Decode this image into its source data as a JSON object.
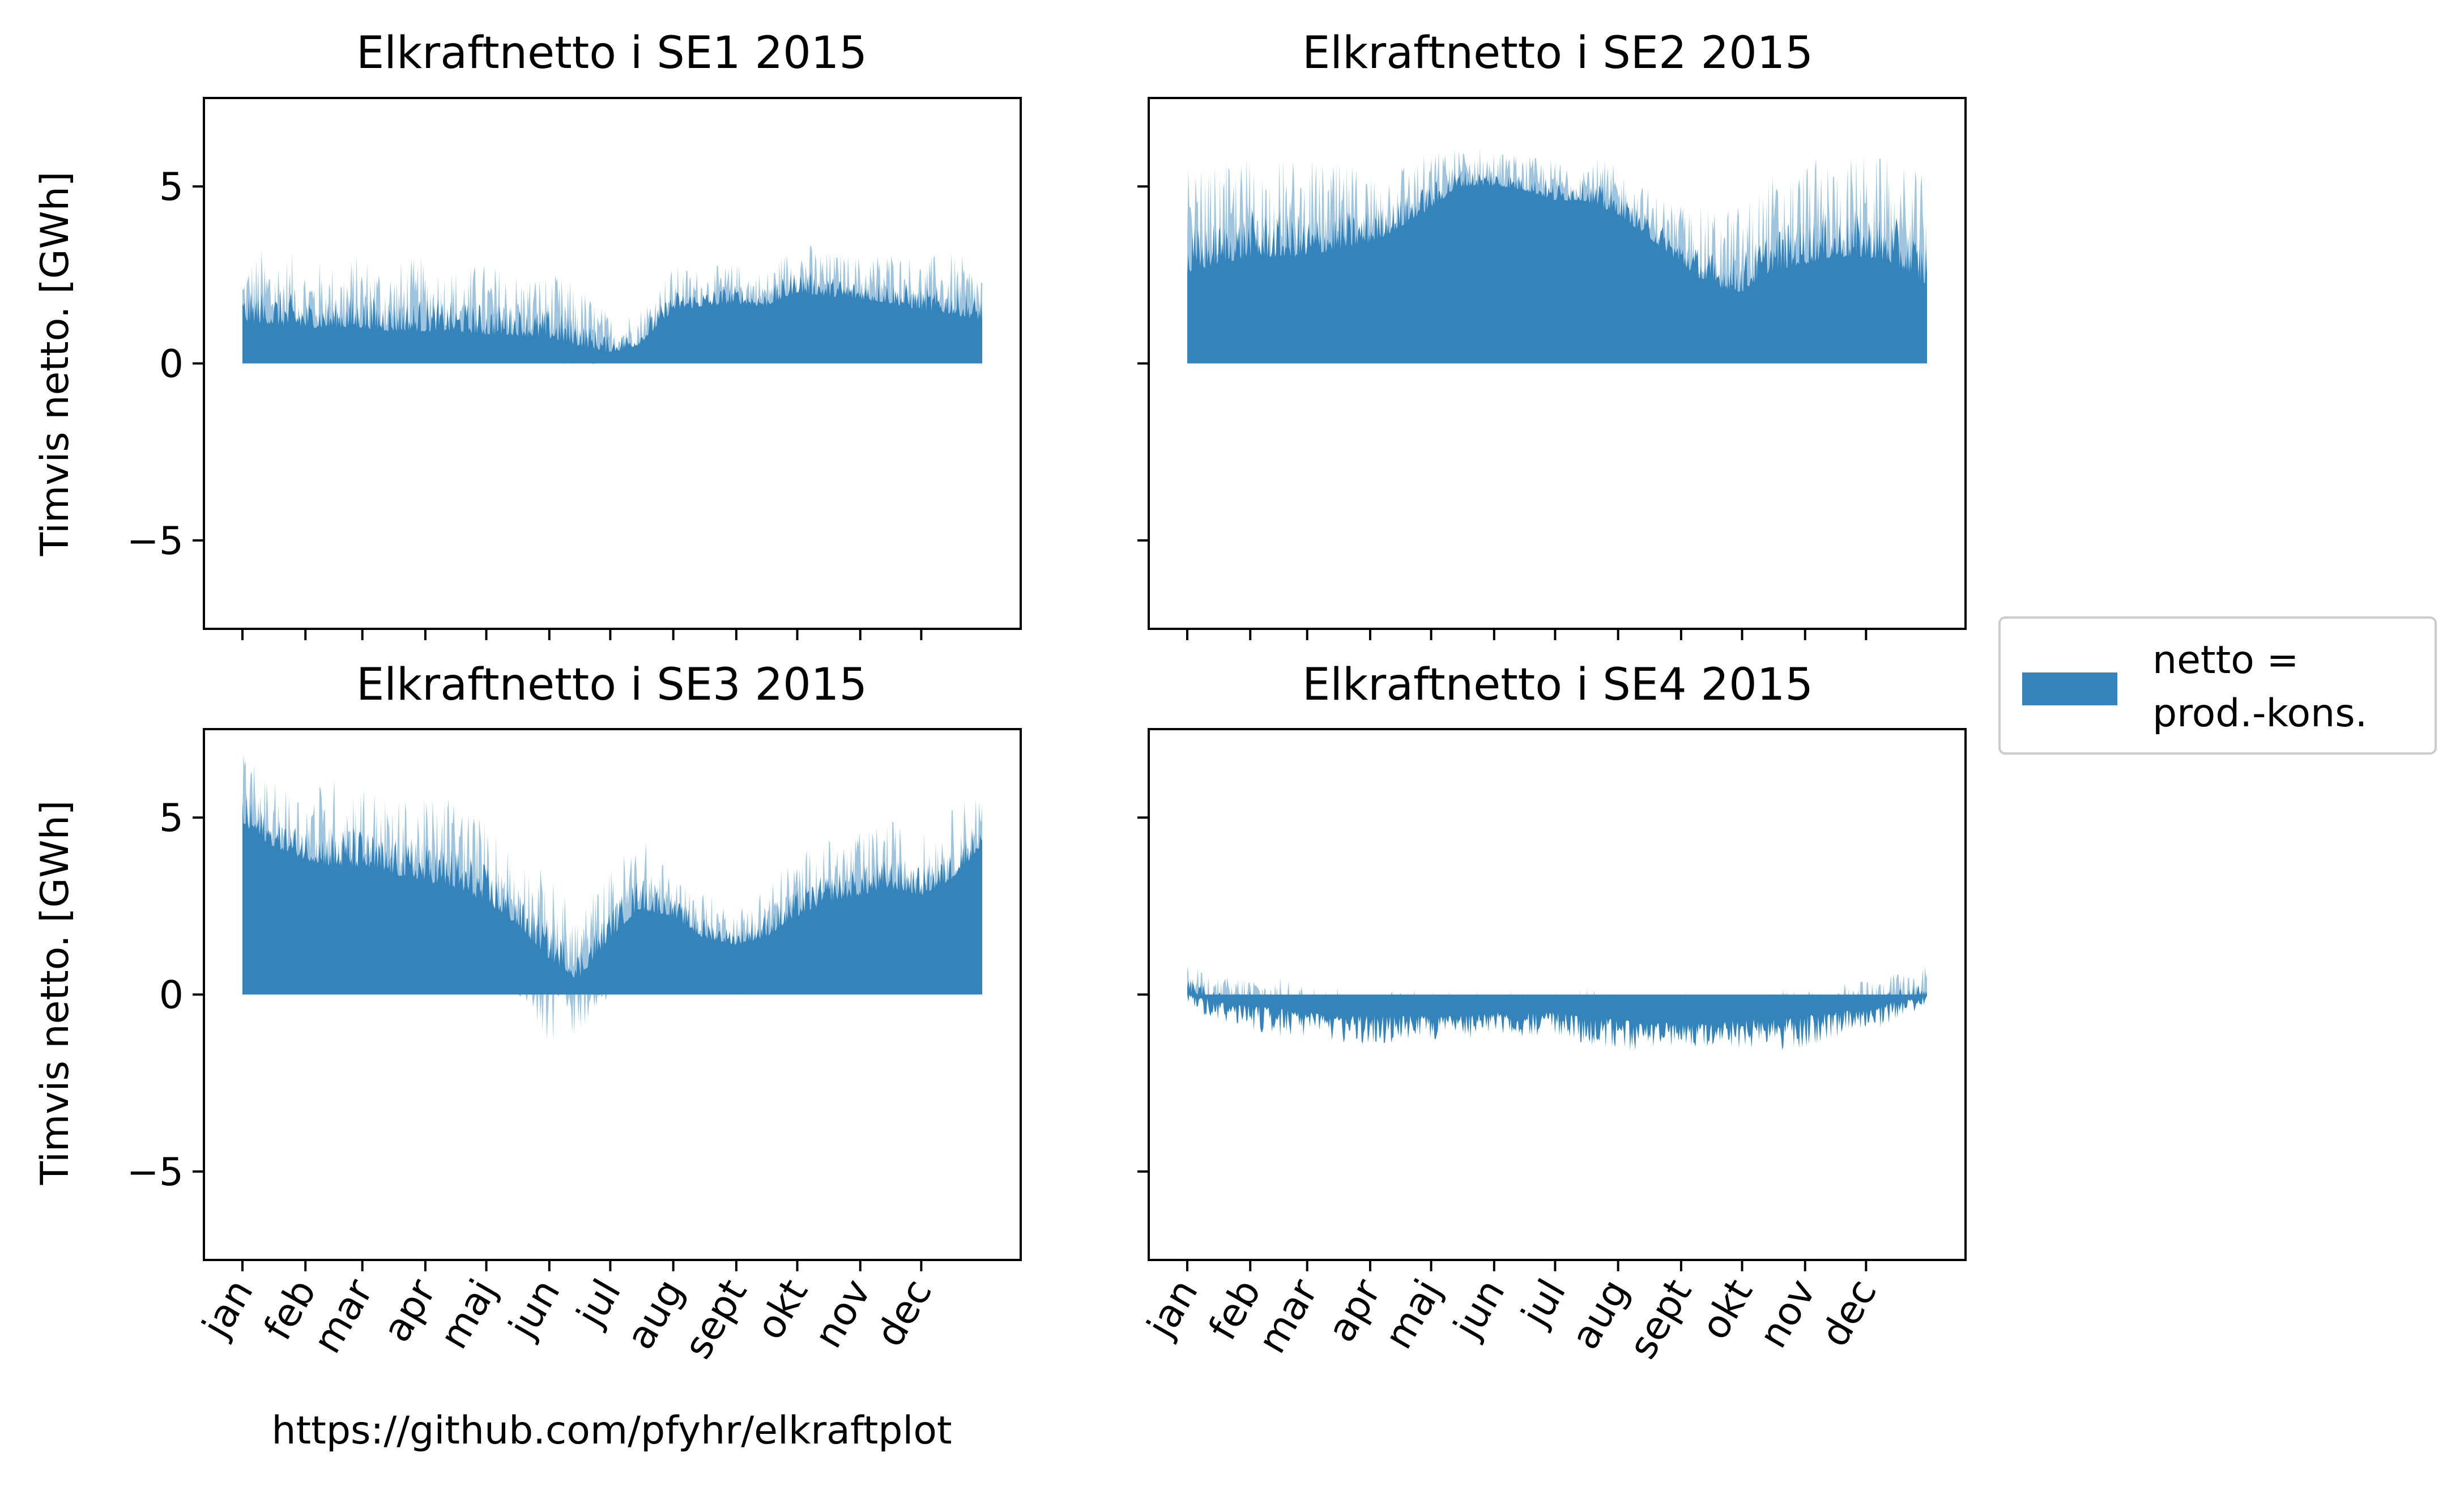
{
  "figure": {
    "credit": "https://github.com/pfyhr/elkraftplot",
    "legend_label_line1": "netto =",
    "legend_label_line2": "prod.-kons.",
    "fill_color": "#3484bb",
    "fill_light_color": "#9ec4de"
  },
  "chart_data": [
    {
      "type": "area",
      "title": "Elkraftnetto i SE1 2015",
      "ylabel": "Timvis netto. [GWh]",
      "xlabel": "",
      "ylim": [
        -7.5,
        7.5
      ],
      "yticks": [
        -5,
        0,
        5
      ],
      "ytick_labels": [
        "−5",
        "0",
        "5"
      ],
      "xticks": [
        "jan",
        "feb",
        "mar",
        "apr",
        "maj",
        "jun",
        "jul",
        "aug",
        "sept",
        "okt",
        "nov",
        "dec"
      ],
      "show_xtick_labels": false,
      "series": [
        {
          "name": "netto = prod.-kons.",
          "x": [
            "2015-01-01",
            "2015-01-15",
            "2015-02-01",
            "2015-02-15",
            "2015-03-01",
            "2015-03-15",
            "2015-04-01",
            "2015-04-15",
            "2015-05-01",
            "2015-05-15",
            "2015-06-01",
            "2015-06-15",
            "2015-07-01",
            "2015-07-15",
            "2015-08-01",
            "2015-08-15",
            "2015-09-01",
            "2015-09-15",
            "2015-10-01",
            "2015-10-15",
            "2015-11-01",
            "2015-11-15",
            "2015-12-01",
            "2015-12-15",
            "2015-12-31"
          ],
          "max": [
            3.0,
            3.4,
            3.0,
            2.9,
            3.2,
            2.9,
            3.1,
            2.8,
            2.9,
            2.7,
            2.6,
            2.3,
            1.4,
            1.6,
            2.8,
            2.7,
            2.9,
            2.6,
            3.6,
            3.2,
            3.1,
            3.3,
            3.0,
            3.2,
            2.8
          ],
          "typical": [
            1.2,
            1.1,
            1.0,
            1.0,
            1.0,
            0.9,
            0.9,
            0.9,
            0.8,
            0.8,
            0.7,
            0.5,
            0.3,
            0.5,
            1.5,
            1.6,
            1.7,
            1.6,
            2.0,
            1.9,
            1.8,
            1.7,
            1.5,
            1.4,
            1.2
          ],
          "min": [
            0.0,
            0.0,
            0.0,
            0.0,
            0.0,
            0.0,
            0.0,
            0.0,
            0.0,
            0.0,
            0.0,
            -0.1,
            0.0,
            0.1,
            0.4,
            0.5,
            0.5,
            0.5,
            0.7,
            0.6,
            0.6,
            0.5,
            0.4,
            0.3,
            0.2
          ]
        }
      ]
    },
    {
      "type": "area",
      "title": "Elkraftnetto i SE2 2015",
      "ylabel": "",
      "xlabel": "",
      "ylim": [
        -7.5,
        7.5
      ],
      "yticks": [
        -5,
        0,
        5
      ],
      "ytick_labels": [
        "",
        "",
        ""
      ],
      "xticks": [
        "jan",
        "feb",
        "mar",
        "apr",
        "maj",
        "jun",
        "jul",
        "aug",
        "sept",
        "okt",
        "nov",
        "dec"
      ],
      "show_xtick_labels": false,
      "series": [
        {
          "name": "netto = prod.-kons.",
          "x": [
            "2015-01-01",
            "2015-01-15",
            "2015-02-01",
            "2015-02-15",
            "2015-03-01",
            "2015-03-15",
            "2015-04-01",
            "2015-04-15",
            "2015-05-01",
            "2015-05-15",
            "2015-06-01",
            "2015-06-15",
            "2015-07-01",
            "2015-07-15",
            "2015-08-01",
            "2015-08-15",
            "2015-09-01",
            "2015-09-15",
            "2015-10-01",
            "2015-10-15",
            "2015-11-01",
            "2015-11-15",
            "2015-12-01",
            "2015-12-15",
            "2015-12-31"
          ],
          "max": [
            5.5,
            5.6,
            6.0,
            5.9,
            5.8,
            5.7,
            5.6,
            5.8,
            6.0,
            6.2,
            6.1,
            5.9,
            5.8,
            6.0,
            5.6,
            5.0,
            4.6,
            4.4,
            4.6,
            5.4,
            5.8,
            5.9,
            6.0,
            5.8,
            5.3
          ],
          "typical": [
            2.5,
            2.8,
            3.0,
            3.0,
            3.0,
            3.2,
            3.4,
            3.8,
            4.4,
            5.0,
            5.0,
            4.9,
            4.6,
            4.6,
            4.2,
            3.6,
            2.8,
            2.2,
            2.0,
            2.6,
            2.8,
            3.0,
            3.0,
            2.8,
            2.2
          ],
          "min": [
            0.4,
            0.6,
            0.8,
            0.8,
            0.8,
            1.0,
            1.2,
            1.6,
            2.0,
            2.6,
            2.8,
            2.6,
            2.2,
            2.0,
            1.6,
            1.2,
            0.8,
            0.6,
            0.6,
            0.8,
            1.0,
            1.0,
            1.0,
            0.9,
            0.6
          ]
        }
      ]
    },
    {
      "type": "area",
      "title": "Elkraftnetto i SE3 2015",
      "ylabel": "Timvis netto. [GWh]",
      "xlabel": "",
      "ylim": [
        -7.5,
        7.5
      ],
      "yticks": [
        -5,
        0,
        5
      ],
      "ytick_labels": [
        "−5",
        "0",
        "5"
      ],
      "xticks": [
        "jan",
        "feb",
        "mar",
        "apr",
        "maj",
        "jun",
        "jul",
        "aug",
        "sept",
        "okt",
        "nov",
        "dec"
      ],
      "show_xtick_labels": true,
      "series": [
        {
          "name": "netto = prod.-kons.",
          "x": [
            "2015-01-01",
            "2015-01-15",
            "2015-02-01",
            "2015-02-15",
            "2015-03-01",
            "2015-03-15",
            "2015-04-01",
            "2015-04-15",
            "2015-05-01",
            "2015-05-15",
            "2015-06-01",
            "2015-06-15",
            "2015-07-01",
            "2015-07-15",
            "2015-08-01",
            "2015-08-15",
            "2015-09-01",
            "2015-09-15",
            "2015-10-01",
            "2015-10-15",
            "2015-11-01",
            "2015-11-15",
            "2015-12-01",
            "2015-12-15",
            "2015-12-31"
          ],
          "max": [
            7.0,
            6.0,
            5.9,
            6.2,
            6.2,
            5.5,
            5.6,
            5.8,
            5.0,
            4.2,
            3.4,
            2.4,
            3.6,
            4.6,
            3.4,
            3.0,
            2.4,
            3.2,
            4.0,
            4.4,
            4.6,
            5.0,
            4.6,
            5.2,
            6.0
          ],
          "typical": [
            4.8,
            4.2,
            3.8,
            3.6,
            3.6,
            3.4,
            3.2,
            3.0,
            2.6,
            2.0,
            1.0,
            0.4,
            1.6,
            2.4,
            2.2,
            1.6,
            1.4,
            1.6,
            2.2,
            2.6,
            2.8,
            3.0,
            2.8,
            3.2,
            4.2
          ],
          "min": [
            2.8,
            2.4,
            2.0,
            1.8,
            1.6,
            1.4,
            1.4,
            1.2,
            0.8,
            0.2,
            -1.5,
            -1.2,
            0.0,
            0.8,
            0.6,
            0.4,
            0.0,
            -0.2,
            0.6,
            1.0,
            1.2,
            1.2,
            1.0,
            1.4,
            2.2
          ]
        }
      ]
    },
    {
      "type": "area",
      "title": "Elkraftnetto i SE4 2015",
      "ylabel": "",
      "xlabel": "",
      "ylim": [
        -7.5,
        7.5
      ],
      "yticks": [
        -5,
        0,
        5
      ],
      "ytick_labels": [
        "",
        "",
        ""
      ],
      "xticks": [
        "jan",
        "feb",
        "mar",
        "apr",
        "maj",
        "jun",
        "jul",
        "aug",
        "sept",
        "okt",
        "nov",
        "dec"
      ],
      "show_xtick_labels": true,
      "series": [
        {
          "name": "netto = prod.-kons.",
          "x": [
            "2015-01-01",
            "2015-01-15",
            "2015-02-01",
            "2015-02-15",
            "2015-03-01",
            "2015-03-15",
            "2015-04-01",
            "2015-04-15",
            "2015-05-01",
            "2015-05-15",
            "2015-06-01",
            "2015-06-15",
            "2015-07-01",
            "2015-07-15",
            "2015-08-01",
            "2015-08-15",
            "2015-09-01",
            "2015-09-15",
            "2015-10-01",
            "2015-10-15",
            "2015-11-01",
            "2015-11-15",
            "2015-12-01",
            "2015-12-15",
            "2015-12-31"
          ],
          "max": [
            0.9,
            0.5,
            0.6,
            0.5,
            0.3,
            0.2,
            0.2,
            0.1,
            0.2,
            0.1,
            0.2,
            0.1,
            0.1,
            0.2,
            0.1,
            0.0,
            0.1,
            0.0,
            0.1,
            0.1,
            0.2,
            0.3,
            0.4,
            0.6,
            0.8
          ],
          "typical": [
            0.1,
            -0.2,
            -0.3,
            -0.4,
            -0.5,
            -0.6,
            -0.6,
            -0.6,
            -0.6,
            -0.6,
            -0.5,
            -0.5,
            -0.5,
            -0.6,
            -0.7,
            -0.8,
            -0.8,
            -0.8,
            -0.7,
            -0.7,
            -0.6,
            -0.5,
            -0.4,
            -0.2,
            0.0
          ],
          "min": [
            -0.3,
            -0.8,
            -1.0,
            -1.2,
            -1.3,
            -1.4,
            -1.5,
            -1.4,
            -1.3,
            -1.3,
            -1.2,
            -1.2,
            -1.2,
            -1.4,
            -1.6,
            -1.6,
            -1.5,
            -1.5,
            -1.6,
            -1.6,
            -1.5,
            -1.3,
            -1.1,
            -0.8,
            -0.3
          ]
        }
      ]
    }
  ]
}
